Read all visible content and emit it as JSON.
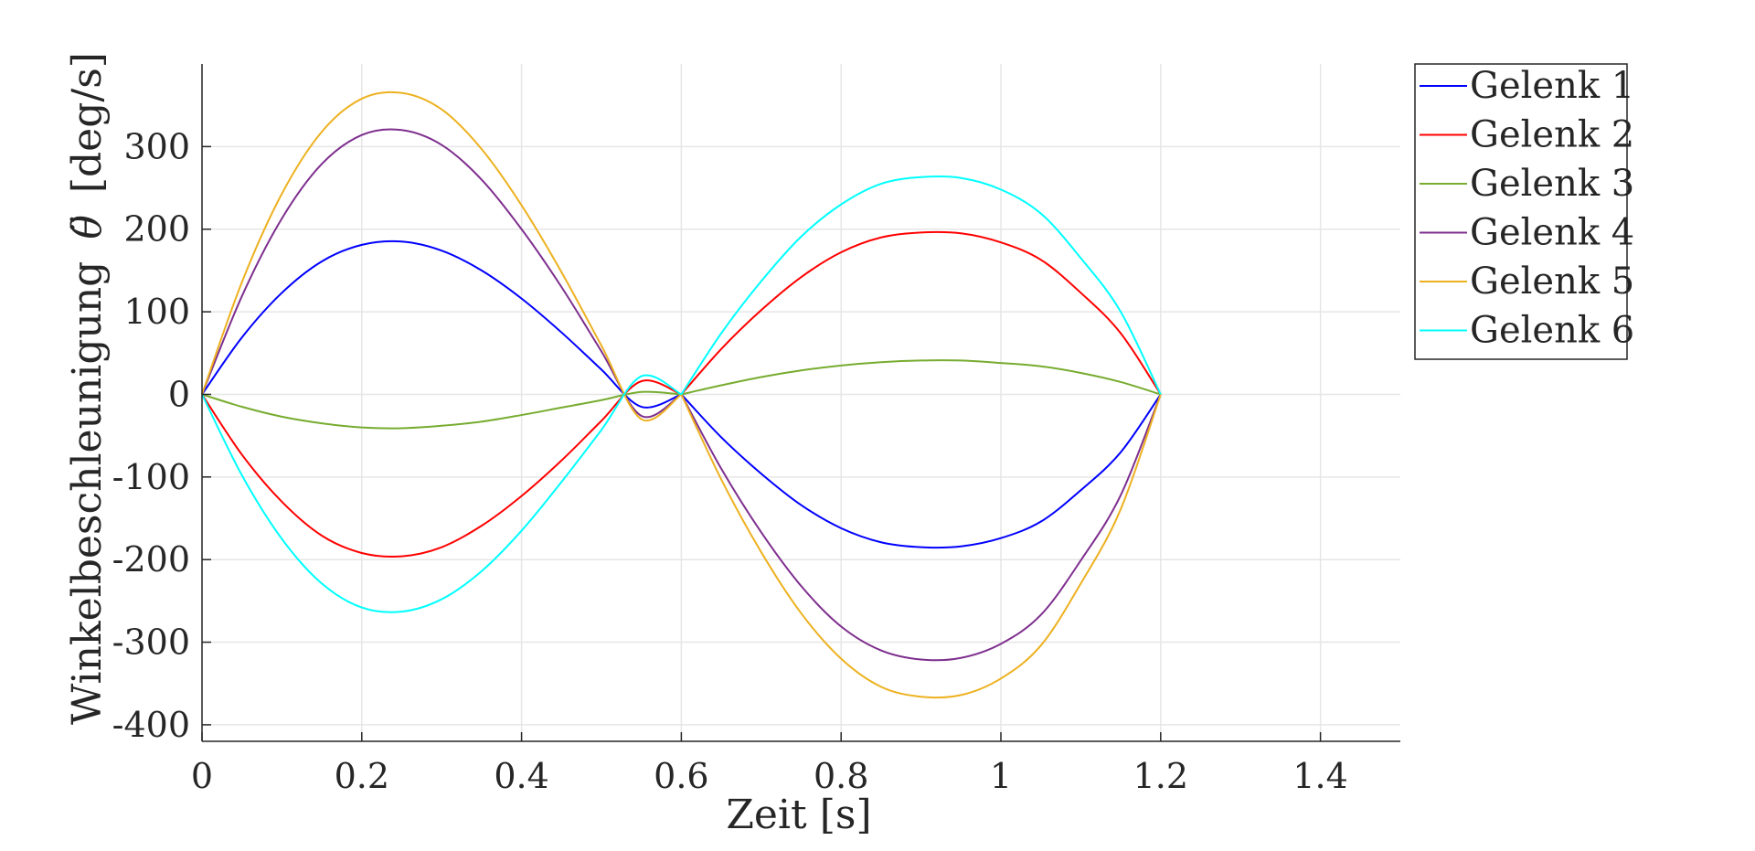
{
  "chart_data": {
    "type": "line",
    "xlabel": "Zeit [s]",
    "ylabel": "Winkelbeschleunigung",
    "ylabel_symbol": "θ̈",
    "ylabel_unit": "[deg/s]",
    "xlim": [
      0,
      1.5
    ],
    "ylim": [
      -420,
      400
    ],
    "xticks": [
      0,
      0.2,
      0.4,
      0.6,
      0.8,
      1,
      1.2,
      1.4
    ],
    "xtick_labels": [
      "0",
      "0.2",
      "0.4",
      "0.6",
      "0.8",
      "1",
      "1.2",
      "1.4"
    ],
    "yticks": [
      -400,
      -300,
      -200,
      -100,
      0,
      100,
      200,
      300
    ],
    "ytick_labels": [
      "-400",
      "-300",
      "-200",
      "-100",
      "0",
      "100",
      "200",
      "300"
    ],
    "grid": true,
    "legend_position": "outside-top-right",
    "x": [
      0,
      0.05,
      0.1,
      0.15,
      0.2,
      0.25,
      0.3,
      0.35,
      0.4,
      0.45,
      0.5,
      0.55,
      0.6,
      0.65,
      0.7,
      0.75,
      0.8,
      0.85,
      0.9,
      0.95,
      1.0,
      1.05,
      1.1,
      1.15,
      1.2
    ],
    "series": [
      {
        "name": "Gelenk 1",
        "color": "#0000ff",
        "values": [
          0,
          69,
          123,
          161,
          181,
          185,
          174,
          150,
          116,
          75,
          30,
          -15,
          0,
          -52,
          -96,
          -134,
          -162,
          -179,
          -185,
          -184,
          -174,
          -154,
          -116,
          -70,
          0
        ]
      },
      {
        "name": "Gelenk 2",
        "color": "#ff0000",
        "values": [
          0,
          -73,
          -130,
          -171,
          -192,
          -196,
          -185,
          -159,
          -123,
          -80,
          -32,
          16,
          0,
          55,
          102,
          142,
          172,
          190,
          196,
          195,
          184,
          163,
          123,
          74,
          0
        ]
      },
      {
        "name": "Gelenk 3",
        "color": "#77ac30",
        "values": [
          0,
          -15,
          -27,
          -35,
          -40,
          -41,
          -38,
          -33,
          -25,
          -16,
          -7,
          3,
          0,
          11,
          21,
          29,
          35,
          39,
          41,
          41,
          38,
          34,
          26,
          15,
          0
        ]
      },
      {
        "name": "Gelenk 4",
        "color": "#7e2f8e",
        "values": [
          0,
          119,
          213,
          279,
          314,
          320,
          302,
          260,
          200,
          130,
          52,
          -26,
          0,
          -90,
          -167,
          -232,
          -281,
          -310,
          -321,
          -319,
          -302,
          -267,
          -201,
          -122,
          0
        ]
      },
      {
        "name": "Gelenk 5",
        "color": "#edb120",
        "values": [
          0,
          136,
          243,
          318,
          358,
          365,
          345,
          297,
          229,
          148,
          59,
          -30,
          0,
          -103,
          -191,
          -265,
          -320,
          -354,
          -366,
          -364,
          -344,
          -304,
          -229,
          -139,
          0
        ]
      },
      {
        "name": "Gelenk 6",
        "color": "#00ffff",
        "values": [
          0,
          -98,
          -175,
          -229,
          -258,
          -263,
          -248,
          -214,
          -165,
          -106,
          -43,
          22,
          0,
          74,
          137,
          191,
          230,
          255,
          263,
          262,
          248,
          219,
          165,
          100,
          0
        ]
      }
    ]
  }
}
